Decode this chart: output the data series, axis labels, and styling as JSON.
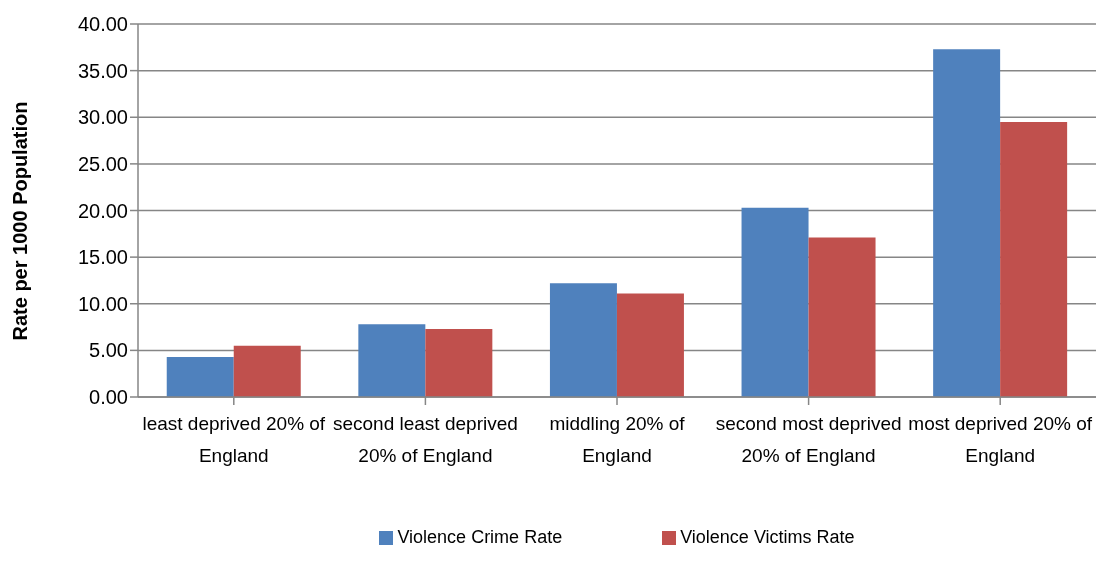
{
  "chart_data": {
    "type": "bar",
    "ylabel": "Rate per 1000 Population",
    "categories": [
      "least deprived 20% of England",
      "second least deprived 20% of England",
      "middling 20% of England",
      "second most deprived 20% of England",
      "most deprived 20% of England"
    ],
    "series": [
      {
        "name": "Violence Crime Rate",
        "color": "#4f81bd",
        "values": [
          4.3,
          7.8,
          12.2,
          20.3,
          37.3
        ]
      },
      {
        "name": "Violence Victims Rate",
        "color": "#c0504d",
        "values": [
          5.5,
          7.3,
          11.1,
          17.1,
          29.5
        ]
      }
    ],
    "ylim": [
      0,
      40
    ],
    "yticks": [
      {
        "value": 0,
        "label": "0.00"
      },
      {
        "value": 5,
        "label": "5.00"
      },
      {
        "value": 10,
        "label": "10.00"
      },
      {
        "value": 15,
        "label": "15.00"
      },
      {
        "value": 20,
        "label": "20.00"
      },
      {
        "value": 25,
        "label": "25.00"
      },
      {
        "value": 30,
        "label": "30.00"
      },
      {
        "value": 35,
        "label": "35.00"
      },
      {
        "value": 40,
        "label": "40.00"
      }
    ],
    "grid": "y",
    "legend": "bottom"
  }
}
